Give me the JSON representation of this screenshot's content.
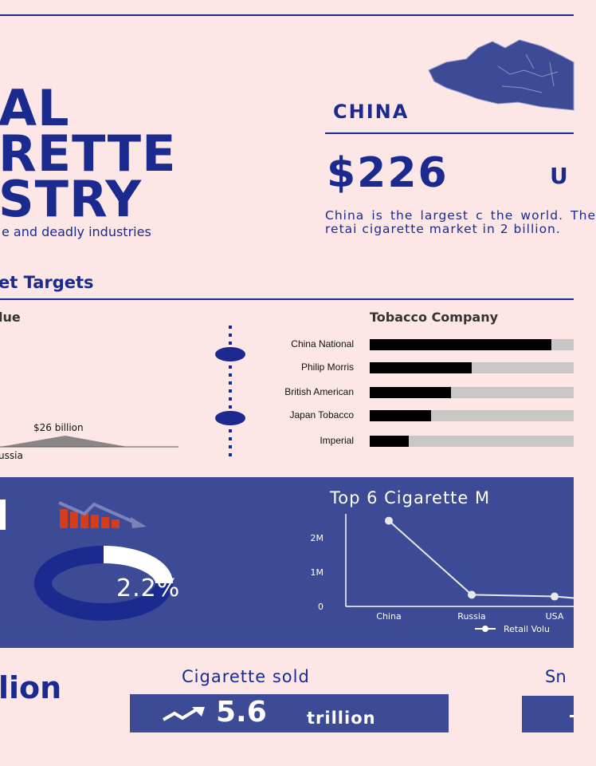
{
  "title": {
    "line1": "AL",
    "line2": "RETTE",
    "line3": "STRY"
  },
  "subtitle": "e and deadly industries",
  "section_heading": "et Targets",
  "china": {
    "label": "CHINA",
    "amount": "$226",
    "amount_suffix": "U",
    "description": "China is the largest c the world. The retai cigarette market in 2 billion."
  },
  "left_panel": {
    "heading": "lue",
    "mountain_label": "$26 billion",
    "axis_label": "ussia"
  },
  "companies": {
    "heading": "Tobacco Company",
    "items": [
      {
        "name": "China National",
        "share": 0.89
      },
      {
        "name": "Philip Morris",
        "share": 0.5
      },
      {
        "name": "British American",
        "share": 0.4
      },
      {
        "name": "Japan Tobacco",
        "share": 0.3
      },
      {
        "name": "Imperial",
        "share": 0.19
      }
    ]
  },
  "donut": {
    "value_label": "2.2%",
    "fraction": 0.25
  },
  "chart_data": {
    "type": "line",
    "title": "Top 6 Cigarette M",
    "categories": [
      "China",
      "Russia",
      "USA"
    ],
    "series": [
      {
        "name": "Retail Volu",
        "values": [
          2500000,
          340000,
          290000
        ]
      }
    ],
    "y_ticks": [
      "0",
      "1M",
      "2M"
    ],
    "ylim": [
      0,
      2700000
    ],
    "legend": "bottom"
  },
  "stats": {
    "left_partial": "lion",
    "sold_label": "Cigarette sold",
    "sold_value": "5.6",
    "sold_unit": "trillion",
    "right_partial": "Sn"
  },
  "colors": {
    "navy": "#1a2a8f",
    "band": "#3d4a96",
    "background": "#fde6e6",
    "accent": "#d43d1a"
  }
}
